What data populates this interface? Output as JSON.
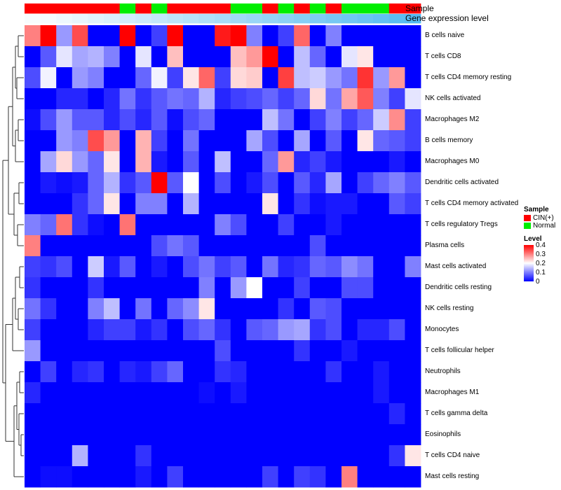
{
  "chart_data": {
    "type": "heatmap",
    "title": "",
    "annotations": {
      "sample_label": "Sample",
      "gene_label": "Gene expression level",
      "sample_groups": [
        "CIN(+)",
        "CIN(+)",
        "CIN(+)",
        "CIN(+)",
        "CIN(+)",
        "CIN(+)",
        "Normal",
        "CIN(+)",
        "Normal",
        "CIN(+)",
        "CIN(+)",
        "CIN(+)",
        "CIN(+)",
        "Normal",
        "Normal",
        "CIN(+)",
        "Normal",
        "CIN(+)",
        "Normal",
        "CIN(+)",
        "Normal",
        "Normal",
        "Normal",
        "CIN(+)",
        "CIN(+)"
      ],
      "gene_levels": [
        0.02,
        0.03,
        0.05,
        0.07,
        0.09,
        0.11,
        0.13,
        0.15,
        0.17,
        0.19,
        0.21,
        0.23,
        0.25,
        0.27,
        0.29,
        0.31,
        0.33,
        0.35,
        0.37,
        0.39,
        0.41,
        0.43,
        0.45,
        0.47,
        0.49
      ]
    },
    "rows": [
      "B cells naive",
      "T cells CD8",
      "T cells CD4 memory resting",
      "NK cells activated",
      "Macrophages M2",
      "B cells memory",
      "Macrophages M0",
      "Dendritic cells activated",
      "T cells CD4 memory activated",
      "T cells regulatory  Tregs",
      "Plasma cells",
      "Mast cells activated",
      "Dendritic cells resting",
      "NK cells resting",
      "Monocytes",
      "T cells follicular helper",
      "Neutrophils",
      "Macrophages M1",
      "T cells gamma delta",
      "Eosinophils",
      "T cells CD4 naive",
      "Mast cells resting"
    ],
    "values": [
      [
        0.3,
        0.4,
        0.12,
        0.34,
        0.0,
        0.0,
        0.4,
        0.0,
        0.05,
        0.4,
        0.0,
        0.0,
        0.38,
        0.4,
        0.1,
        0.0,
        0.05,
        0.32,
        0.0,
        0.1,
        0.0,
        0.0,
        0.0,
        0.0,
        0.0
      ],
      [
        0.0,
        0.07,
        0.18,
        0.13,
        0.14,
        0.1,
        0.0,
        0.18,
        0.0,
        0.25,
        0.0,
        0.0,
        0.0,
        0.25,
        0.28,
        0.4,
        0.0,
        0.15,
        0.08,
        0.0,
        0.18,
        0.22,
        0.0,
        0.0,
        0.0
      ],
      [
        0.06,
        0.19,
        0.0,
        0.12,
        0.1,
        0.0,
        0.0,
        0.08,
        0.19,
        0.05,
        0.22,
        0.32,
        0.05,
        0.23,
        0.24,
        0.0,
        0.35,
        0.15,
        0.16,
        0.12,
        0.09,
        0.36,
        0.12,
        0.28,
        0.0
      ],
      [
        0.0,
        0.0,
        0.03,
        0.03,
        0.0,
        0.03,
        0.09,
        0.04,
        0.07,
        0.09,
        0.08,
        0.14,
        0.03,
        0.05,
        0.06,
        0.08,
        0.05,
        0.08,
        0.23,
        0.09,
        0.27,
        0.33,
        0.1,
        0.05,
        0.18
      ],
      [
        0.01,
        0.06,
        0.12,
        0.07,
        0.07,
        0.03,
        0.06,
        0.03,
        0.07,
        0.01,
        0.06,
        0.08,
        0.0,
        0.0,
        0.0,
        0.15,
        0.09,
        0.0,
        0.05,
        0.1,
        0.05,
        0.08,
        0.16,
        0.29,
        0.05
      ],
      [
        0.0,
        0.0,
        0.12,
        0.1,
        0.34,
        0.28,
        0.0,
        0.26,
        0.05,
        0.0,
        0.09,
        0.0,
        0.0,
        0.0,
        0.13,
        0.06,
        0.0,
        0.13,
        0.0,
        0.07,
        0.0,
        0.22,
        0.08,
        0.07,
        0.05
      ],
      [
        0.0,
        0.13,
        0.23,
        0.12,
        0.08,
        0.22,
        0.0,
        0.26,
        0.02,
        0.0,
        0.07,
        0.0,
        0.15,
        0.0,
        0.0,
        0.08,
        0.28,
        0.03,
        0.05,
        0.02,
        0.0,
        0.0,
        0.0,
        0.02,
        0.0
      ],
      [
        0.0,
        0.02,
        0.01,
        0.02,
        0.08,
        0.14,
        0.04,
        0.07,
        0.4,
        0.07,
        0.2,
        0.0,
        0.06,
        0.0,
        0.02,
        0.06,
        0.0,
        0.07,
        0.03,
        0.13,
        0.0,
        0.05,
        0.08,
        0.1,
        0.07
      ],
      [
        0.0,
        0.0,
        0.0,
        0.04,
        0.08,
        0.22,
        0.0,
        0.1,
        0.1,
        0.0,
        0.14,
        0.0,
        0.0,
        0.0,
        0.0,
        0.22,
        0.0,
        0.04,
        0.01,
        0.02,
        0.02,
        0.0,
        0.0,
        0.07,
        0.05
      ],
      [
        0.1,
        0.08,
        0.31,
        0.04,
        0.01,
        0.0,
        0.31,
        0.0,
        0.0,
        0.0,
        0.0,
        0.0,
        0.1,
        0.06,
        0.0,
        0.0,
        0.05,
        0.0,
        0.0,
        0.02,
        0.0,
        0.0,
        0.0,
        0.0,
        0.0
      ],
      [
        0.3,
        0.0,
        0.0,
        0.0,
        0.0,
        0.0,
        0.0,
        0.0,
        0.06,
        0.09,
        0.07,
        0.0,
        0.0,
        0.0,
        0.0,
        0.0,
        0.0,
        0.0,
        0.06,
        0.0,
        0.0,
        0.0,
        0.0,
        0.0,
        0.0
      ],
      [
        0.05,
        0.04,
        0.06,
        0.0,
        0.16,
        0.02,
        0.07,
        0.0,
        0.02,
        0.0,
        0.06,
        0.09,
        0.05,
        0.07,
        0.0,
        0.09,
        0.03,
        0.04,
        0.08,
        0.07,
        0.11,
        0.09,
        0.0,
        0.0,
        0.1
      ],
      [
        0.04,
        0.0,
        0.0,
        0.0,
        0.04,
        0.0,
        0.0,
        0.0,
        0.0,
        0.0,
        0.0,
        0.1,
        0.0,
        0.12,
        0.2,
        0.0,
        0.0,
        0.05,
        0.0,
        0.0,
        0.06,
        0.06,
        0.0,
        0.0,
        0.0
      ],
      [
        0.09,
        0.04,
        0.0,
        0.0,
        0.1,
        0.15,
        0.0,
        0.09,
        0.0,
        0.08,
        0.11,
        0.22,
        0.0,
        0.0,
        0.0,
        0.0,
        0.04,
        0.0,
        0.07,
        0.06,
        0.0,
        0.0,
        0.0,
        0.0,
        0.0
      ],
      [
        0.05,
        0.0,
        0.0,
        0.0,
        0.03,
        0.05,
        0.05,
        0.02,
        0.04,
        0.0,
        0.06,
        0.08,
        0.04,
        0.0,
        0.07,
        0.08,
        0.12,
        0.13,
        0.04,
        0.06,
        0.0,
        0.03,
        0.03,
        0.06,
        0.0
      ],
      [
        0.12,
        0.0,
        0.0,
        0.0,
        0.0,
        0.0,
        0.0,
        0.0,
        0.0,
        0.0,
        0.0,
        0.0,
        0.06,
        0.0,
        0.0,
        0.0,
        0.0,
        0.04,
        0.0,
        0.0,
        0.02,
        0.0,
        0.0,
        0.0,
        0.0
      ],
      [
        0.0,
        0.05,
        0.0,
        0.03,
        0.04,
        0.0,
        0.03,
        0.02,
        0.05,
        0.08,
        0.0,
        0.0,
        0.04,
        0.03,
        0.0,
        0.0,
        0.0,
        0.0,
        0.0,
        0.04,
        0.0,
        0.0,
        0.02,
        0.0,
        0.0
      ],
      [
        0.03,
        0.0,
        0.0,
        0.0,
        0.0,
        0.0,
        0.0,
        0.0,
        0.0,
        0.0,
        0.0,
        0.01,
        0.0,
        0.02,
        0.0,
        0.0,
        0.0,
        0.0,
        0.0,
        0.0,
        0.0,
        0.0,
        0.02,
        0.0,
        0.0
      ],
      [
        0.0,
        0.0,
        0.0,
        0.0,
        0.0,
        0.0,
        0.0,
        0.0,
        0.0,
        0.0,
        0.0,
        0.0,
        0.0,
        0.0,
        0.0,
        0.0,
        0.0,
        0.0,
        0.0,
        0.0,
        0.0,
        0.0,
        0.0,
        0.03,
        0.0
      ],
      [
        0.0,
        0.0,
        0.0,
        0.0,
        0.0,
        0.0,
        0.0,
        0.0,
        0.0,
        0.0,
        0.0,
        0.0,
        0.0,
        0.0,
        0.0,
        0.0,
        0.0,
        0.0,
        0.0,
        0.0,
        0.0,
        0.0,
        0.0,
        0.0,
        0.0
      ],
      [
        0.0,
        0.0,
        0.0,
        0.14,
        0.0,
        0.0,
        0.0,
        0.04,
        0.0,
        0.0,
        0.0,
        0.0,
        0.0,
        0.0,
        0.0,
        0.0,
        0.0,
        0.0,
        0.0,
        0.0,
        0.0,
        0.0,
        0.0,
        0.04,
        0.22
      ],
      [
        0.0,
        0.01,
        0.01,
        0.0,
        0.0,
        0.0,
        0.0,
        0.02,
        0.0,
        0.05,
        0.0,
        0.0,
        0.0,
        0.0,
        0.0,
        0.05,
        0.0,
        0.05,
        0.04,
        0.0,
        0.3,
        0.0,
        0.0,
        0.0,
        0.0
      ]
    ],
    "legend": {
      "sample_title": "Sample",
      "sample_items": [
        {
          "label": "CIN(+)",
          "color": "#ff0000"
        },
        {
          "label": "Normal",
          "color": "#00ee00"
        }
      ],
      "level_title": "Level",
      "level_ticks": [
        "0.4",
        "0.3",
        "0.2",
        "0.1",
        "0"
      ],
      "level_range": [
        0,
        0.4
      ]
    },
    "colors": {
      "low": "#0000ff",
      "mid": "#ffffff",
      "high": "#ff0000"
    }
  }
}
